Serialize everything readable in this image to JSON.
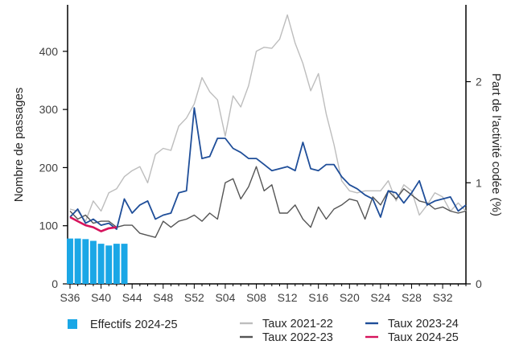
{
  "chart_data": {
    "type": "bar+line",
    "x_labels": [
      "S36",
      "S40",
      "S44",
      "S48",
      "S52",
      "S04",
      "S08",
      "S12",
      "S16",
      "S20",
      "S24",
      "S28",
      "S32"
    ],
    "x_count": 52,
    "y_left": {
      "label": "Nombre de passages",
      "ticks": [
        0,
        100,
        200,
        300,
        400
      ],
      "range": [
        0,
        480
      ]
    },
    "y_right": {
      "label": "Part de l'activité codée (%)",
      "ticks": [
        0,
        1,
        2
      ],
      "range": [
        0,
        2.76
      ]
    },
    "bars": {
      "name": "Effectifs 2024-25",
      "color": "#1aa7e6",
      "values": [
        78,
        78,
        77,
        74,
        69,
        66,
        69,
        69
      ]
    },
    "series": [
      {
        "name": "Taux 2021-22",
        "color": "#bdbdbd",
        "values": [
          0.74,
          0.72,
          0.62,
          0.82,
          0.72,
          0.9,
          0.94,
          1.06,
          1.12,
          1.16,
          1.0,
          1.28,
          1.34,
          1.32,
          1.56,
          1.64,
          1.78,
          2.04,
          1.9,
          1.82,
          1.46,
          1.86,
          1.75,
          1.96,
          2.3,
          2.34,
          2.33,
          2.42,
          2.66,
          2.38,
          2.18,
          1.91,
          2.08,
          1.68,
          1.38,
          1.02,
          0.92,
          0.9,
          0.92,
          0.92,
          0.92,
          1.02,
          0.82,
          0.98,
          0.92,
          0.68,
          0.78,
          0.9,
          0.86,
          0.72,
          0.8,
          0.72
        ]
      },
      {
        "name": "Taux 2022-23",
        "color": "#555555",
        "values": [
          0.72,
          0.64,
          0.68,
          0.6,
          0.62,
          0.62,
          0.56,
          0.58,
          0.58,
          0.5,
          0.48,
          0.46,
          0.62,
          0.56,
          0.62,
          0.64,
          0.68,
          0.62,
          0.7,
          0.64,
          1.0,
          1.04,
          0.84,
          0.96,
          1.16,
          0.92,
          0.98,
          0.7,
          0.7,
          0.78,
          0.64,
          0.56,
          0.76,
          0.64,
          0.74,
          0.78,
          0.84,
          0.82,
          0.64,
          0.86,
          0.78,
          0.92,
          0.84,
          0.94,
          0.88,
          0.82,
          0.8,
          0.74,
          0.76,
          0.72,
          0.7,
          0.72
        ]
      },
      {
        "name": "Taux 2023-24",
        "color": "#1f4e99",
        "values": [
          0.66,
          0.74,
          0.6,
          0.64,
          0.58,
          0.6,
          0.54,
          0.84,
          0.7,
          0.78,
          0.82,
          0.64,
          0.68,
          0.7,
          0.9,
          0.92,
          1.74,
          1.24,
          1.26,
          1.44,
          1.44,
          1.34,
          1.3,
          1.24,
          1.24,
          1.18,
          1.12,
          1.14,
          1.16,
          1.12,
          1.4,
          1.14,
          1.12,
          1.18,
          1.18,
          1.06,
          0.98,
          0.94,
          0.88,
          0.84,
          0.66,
          0.92,
          0.9,
          0.8,
          0.9,
          1.02,
          0.78,
          0.82,
          0.84,
          0.86,
          0.72,
          0.78
        ]
      },
      {
        "name": "Taux 2024-25",
        "color": "#d6135c",
        "values": [
          0.66,
          0.62,
          0.58,
          0.56,
          0.52,
          0.55,
          0.56
        ]
      }
    ],
    "legend": [
      {
        "label": "Effectifs 2024-25",
        "kind": "bar",
        "color": "#1aa7e6"
      },
      {
        "label": "Taux 2021-22",
        "kind": "line",
        "color": "#bdbdbd"
      },
      {
        "label": "Taux 2023-24",
        "kind": "line",
        "color": "#1f4e99"
      },
      {
        "label": "Taux 2022-23",
        "kind": "line",
        "color": "#555555"
      },
      {
        "label": "Taux 2024-25",
        "kind": "line",
        "color": "#d6135c"
      }
    ],
    "legend_position": "bottom",
    "grid": false
  }
}
